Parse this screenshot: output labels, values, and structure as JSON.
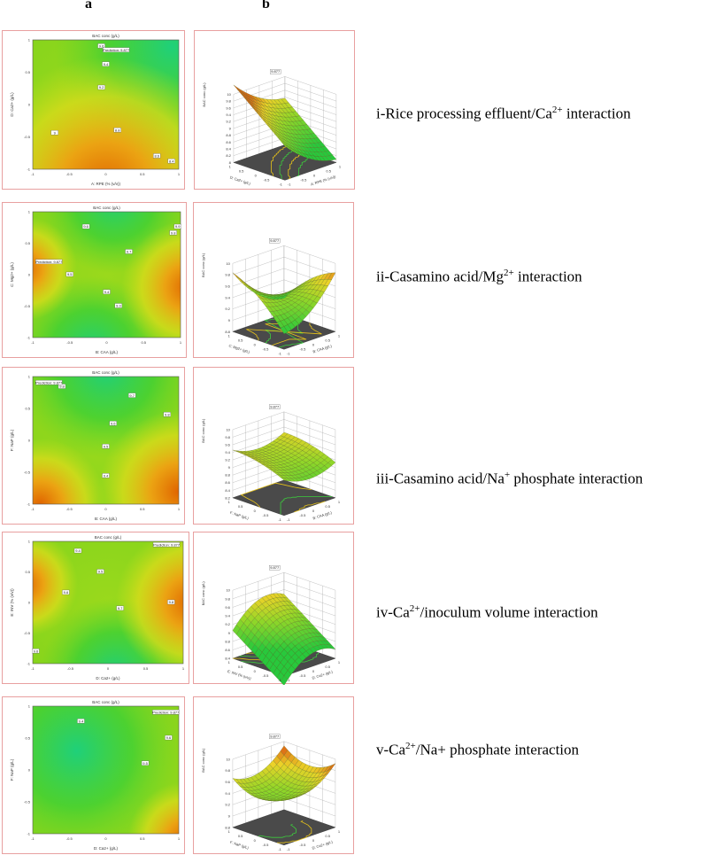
{
  "headers": {
    "a": "a",
    "b": "b"
  },
  "panels": [
    {
      "caption_pre": "i-Rice processing effluent/Ca",
      "caption_sup": "2+",
      "caption_post": " interaction",
      "contour": {
        "title": "BAC conc (g/L)",
        "xlabel": "A: RPE (% (v/v))",
        "ylabel": "D: Ca2+ (g/L)",
        "xticks": [
          "-1",
          "-0.5",
          "0",
          "0.5",
          "1"
        ],
        "yticks": [
          "-1",
          "-0.5",
          "0",
          "0.5",
          "1"
        ],
        "prediction": "Prediction: 9.877",
        "labels": [
          "9.6",
          "9.4",
          "9.2",
          "9",
          "8.8",
          "8.6",
          "8.4"
        ]
      },
      "surface": {
        "zlabel": "BAC conc (g/L)",
        "xlabel": "A: RPE (% (v/v))",
        "ylabel": "D: Ca2+ (g/L)",
        "zticks": [
          "8",
          "8.2",
          "8.4",
          "8.6",
          "8.8",
          "9",
          "9.2",
          "9.4",
          "9.6",
          "9.8",
          "10"
        ],
        "flag": "9.877",
        "ticks": [
          "1",
          "0.5",
          "0",
          "-0.5",
          "-1"
        ]
      }
    },
    {
      "caption_pre": "ii-Casamino acid/Mg",
      "caption_sup": "2+",
      "caption_post": " interaction",
      "contour": {
        "title": "BAC conc (g/L)",
        "xlabel": "B: CAA (g/L)",
        "ylabel": "C: Mg2+ (g/L)",
        "xticks": [
          "-1",
          "-0.5",
          "0",
          "0.5",
          "1"
        ],
        "yticks": [
          "-1",
          "-0.5",
          "0",
          "0.5",
          "1"
        ],
        "prediction": "Prediction: 9.877",
        "labels": [
          "9.6",
          "9.7",
          "9.8",
          "9.5",
          "9.4",
          "9.3",
          "9.9"
        ]
      },
      "surface": {
        "zlabel": "BAC conc (g/L)",
        "xlabel": "B: CAA (g/L)",
        "ylabel": "C: Mg2+ (g/L)",
        "zticks": [
          "8.8",
          "9",
          "9.2",
          "9.4",
          "9.6",
          "9.8",
          "10"
        ],
        "flag": "9.877",
        "ticks": [
          "1",
          "0.5",
          "0",
          "-0.5",
          "-1"
        ]
      }
    },
    {
      "caption_pre": "iii-Casamino acid/Na",
      "caption_sup": "+",
      "caption_post": " phosphate interaction",
      "contour": {
        "title": "BAC conc (g/L)",
        "xlabel": "B: CAA (g/L)",
        "ylabel": "F: NaP (g/L)",
        "xticks": [
          "-1",
          "-0.5",
          "0",
          "0.5",
          "1"
        ],
        "yticks": [
          "-1",
          "-0.5",
          "0",
          "0.5",
          "1"
        ],
        "prediction": "Prediction: 9.877",
        "labels": [
          "9.8",
          "9.7",
          "9.6",
          "9.5",
          "9.4",
          "9.8"
        ]
      },
      "surface": {
        "zlabel": "BAC conc (g/L)",
        "xlabel": "B: CAA (g/L)",
        "ylabel": "F: NaP (g/L)",
        "zticks": [
          "8.2",
          "8.4",
          "8.6",
          "8.8",
          "9",
          "9.2",
          "9.4",
          "9.6",
          "9.8",
          "10"
        ],
        "flag": "9.877",
        "ticks": [
          "1",
          "0.5",
          "0",
          "-0.5",
          "-1"
        ]
      }
    },
    {
      "caption_pre": "iv-Ca",
      "caption_sup": "2+",
      "caption_post": "/inoculum volume interaction",
      "contour": {
        "title": "BAC conc (g/L)",
        "xlabel": "D: Ca2+ (g/L)",
        "ylabel": "E: INV (% (v/v))",
        "xticks": [
          "-1",
          "-0.5",
          "0",
          "0.5",
          "1"
        ],
        "yticks": [
          "-1",
          "-0.5",
          "0",
          "0.5",
          "1"
        ],
        "prediction": "Prediction: 9.877",
        "labels": [
          "9.4",
          "9.5",
          "9.6",
          "9.7",
          "9.8",
          "9.6"
        ]
      },
      "surface": {
        "zlabel": "BAC conc (g/L)",
        "xlabel": "D: Ca2+ (g/L)",
        "ylabel": "E: INV (% (v/v))",
        "zticks": [
          "8.4",
          "8.6",
          "8.8",
          "9",
          "9.2",
          "9.4",
          "9.6",
          "9.8",
          "10"
        ],
        "flag": "9.877",
        "ticks": [
          "1",
          "0.5",
          "0",
          "-0.5",
          "-1"
        ]
      }
    },
    {
      "caption_pre": "v-Ca",
      "caption_sup": "2+",
      "caption_post": "/Na+ phosphate interaction",
      "contour": {
        "title": "BAC conc (g/L)",
        "xlabel": "D: Ca2+ (g/L)",
        "ylabel": "F: NaP (g/L)",
        "xticks": [
          "-1",
          "-0.5",
          "0",
          "0.5",
          "1"
        ],
        "yticks": [
          "-1",
          "-0.5",
          "0",
          "0.5",
          "1"
        ],
        "prediction": "Prediction: 9.877",
        "labels": [
          "9.4",
          "9.5",
          "9.6",
          "9.7"
        ]
      },
      "surface": {
        "zlabel": "BAC conc (g/L)",
        "xlabel": "D: Ca2+ (g/L)",
        "ylabel": "F: NaP (g/L)",
        "zticks": [
          "8.8",
          "9",
          "9.2",
          "9.4",
          "9.6",
          "9.8",
          "10"
        ],
        "flag": "9.877",
        "ticks": [
          "1",
          "0.5",
          "0",
          "-0.5",
          "-1"
        ]
      }
    }
  ],
  "colors": {
    "panel_border": "#e8a0a0",
    "low": "#33cc33",
    "mid": "#d4e21b",
    "high": "#e07000",
    "contour_line": "#3a3a3a",
    "base": "#4a4a4a"
  },
  "chart_data": [
    {
      "type": "heatmap",
      "title": "BAC conc (g/L)",
      "xlabel": "A: RPE (% (v/v))",
      "ylabel": "D: Ca2+ (g/L)",
      "xlim": [
        -1,
        1
      ],
      "ylim": [
        -1,
        1
      ],
      "contour_levels": [
        8.4,
        8.6,
        8.8,
        9,
        9.2,
        9.4,
        9.6
      ]
    },
    {
      "type": "heatmap",
      "title": "BAC conc (g/L)",
      "xlabel": "B: CAA (g/L)",
      "ylabel": "C: Mg2+ (g/L)",
      "xlim": [
        -1,
        1
      ],
      "ylim": [
        -1,
        1
      ],
      "contour_levels": [
        9.3,
        9.4,
        9.5,
        9.6,
        9.7,
        9.8,
        9.9
      ]
    },
    {
      "type": "heatmap",
      "title": "BAC conc (g/L)",
      "xlabel": "B: CAA (g/L)",
      "ylabel": "F: NaP (g/L)",
      "xlim": [
        -1,
        1
      ],
      "ylim": [
        -1,
        1
      ],
      "contour_levels": [
        9.4,
        9.5,
        9.6,
        9.7,
        9.8
      ]
    },
    {
      "type": "heatmap",
      "title": "BAC conc (g/L)",
      "xlabel": "D: Ca2+ (g/L)",
      "ylabel": "E: INV (% (v/v))",
      "xlim": [
        -1,
        1
      ],
      "ylim": [
        -1,
        1
      ],
      "contour_levels": [
        9.4,
        9.5,
        9.6,
        9.7,
        9.8
      ]
    },
    {
      "type": "heatmap",
      "title": "BAC conc (g/L)",
      "xlabel": "D: Ca2+ (g/L)",
      "ylabel": "F: NaP (g/L)",
      "xlim": [
        -1,
        1
      ],
      "ylim": [
        -1,
        1
      ],
      "contour_levels": [
        9.4,
        9.5,
        9.6,
        9.7
      ]
    }
  ]
}
